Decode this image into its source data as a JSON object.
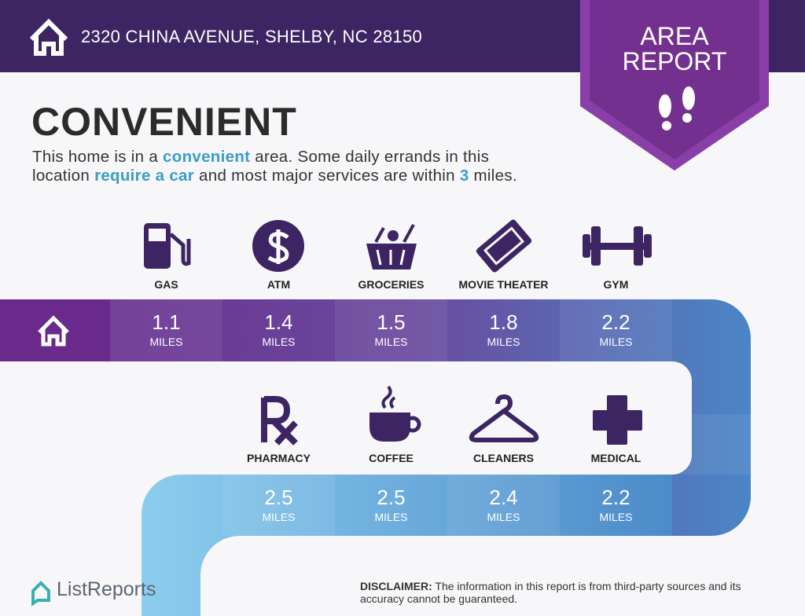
{
  "header": {
    "address": "2320 CHINA AVENUE, SHELBY, NC 28150"
  },
  "badge": {
    "lines": [
      "AREA",
      "REPORT"
    ]
  },
  "title": "CONVENIENT",
  "description": {
    "lines": [
      [
        {
          "text": "This home is in a ",
          "highlight": false
        },
        {
          "text": "convenient",
          "highlight": true
        },
        {
          "text": " area. Some daily errands in this",
          "highlight": false
        }
      ],
      [
        {
          "text": "location ",
          "highlight": false
        },
        {
          "text": "require a car",
          "highlight": true
        },
        {
          "text": " and most major services are within ",
          "highlight": false
        },
        {
          "text": "3",
          "highlight": true
        },
        {
          "text": " miles.",
          "highlight": false
        }
      ]
    ]
  },
  "amenities": [
    {
      "label": "GAS",
      "distance": 1.1,
      "unit": "MILES"
    },
    {
      "label": "ATM",
      "distance": 1.4,
      "unit": "MILES"
    },
    {
      "label": "GROCERIES",
      "distance": 1.5,
      "unit": "MILES"
    },
    {
      "label": "MOVIE THEATER",
      "distance": 1.8,
      "unit": "MILES"
    },
    {
      "label": "GYM",
      "distance": 2.2,
      "unit": "MILES"
    },
    {
      "label": "PHARMACY",
      "distance": 2.5,
      "unit": "MILES"
    },
    {
      "label": "COFFEE",
      "distance": 2.5,
      "unit": "MILES"
    },
    {
      "label": "CLEANERS",
      "distance": 2.4,
      "unit": "MILES"
    },
    {
      "label": "MEDICAL",
      "distance": 2.2,
      "unit": "MILES"
    }
  ],
  "footer": {
    "logo": "ListReports",
    "disclaimer_label": "DISCLAIMER:",
    "disclaimer": "The information in this report is from third-party sources and its accuracy cannot be guaranteed."
  }
}
